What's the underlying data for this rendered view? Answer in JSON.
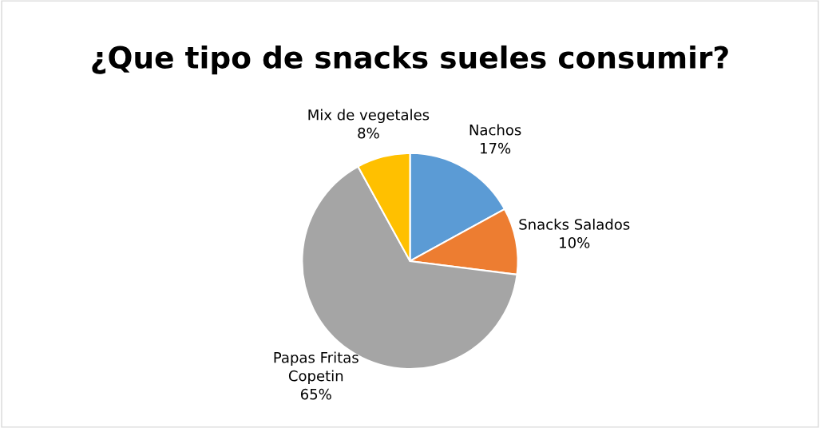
{
  "chart_data": {
    "type": "pie",
    "title": "¿Que tipo de snacks sueles consumir?",
    "categories": [
      "Nachos",
      "Snacks Salados",
      "Papas Fritas\nCopetin",
      "Mix de vegetales"
    ],
    "values": [
      17,
      10,
      65,
      8
    ],
    "value_labels": [
      "17%",
      "10%",
      "65%",
      "8%"
    ],
    "colors": [
      "#5b9bd5",
      "#ed7d31",
      "#a5a5a5",
      "#ffc000"
    ],
    "legend": false
  }
}
